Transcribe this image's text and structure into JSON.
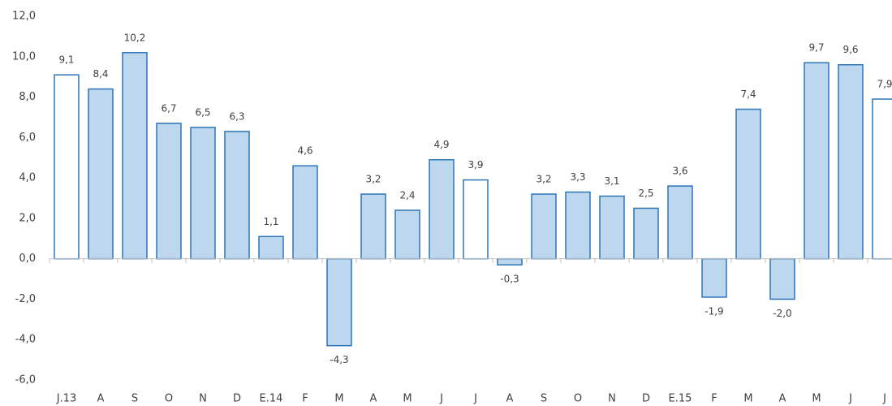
{
  "chart_data": {
    "type": "bar",
    "categories": [
      "J.13",
      "A",
      "S",
      "O",
      "N",
      "D",
      "E.14",
      "F",
      "M",
      "A",
      "M",
      "J",
      "J",
      "A",
      "S",
      "O",
      "N",
      "D",
      "E.15",
      "F",
      "M",
      "A",
      "M",
      "J",
      "J"
    ],
    "values": [
      9.1,
      8.4,
      10.2,
      6.7,
      6.5,
      6.3,
      1.1,
      4.6,
      -4.3,
      3.2,
      2.4,
      4.9,
      3.9,
      -0.3,
      3.2,
      3.3,
      3.1,
      2.5,
      3.6,
      -1.9,
      7.4,
      -2.0,
      9.7,
      9.6,
      7.9
    ],
    "value_labels": [
      "9,1",
      "8,4",
      "10,2",
      "6,7",
      "6,5",
      "6,3",
      "1,1",
      "4,6",
      "-4,3",
      "3,2",
      "2,4",
      "4,9",
      "3,9",
      "-0,3",
      "3,2",
      "3,3",
      "3,1",
      "2,5",
      "3,6",
      "-1,9",
      "7,4",
      "-2,0",
      "9,7",
      "9,6",
      "7,9"
    ],
    "colors": [
      "#ffffff",
      "#bdd7ee",
      "#bdd7ee",
      "#bdd7ee",
      "#bdd7ee",
      "#bdd7ee",
      "#bdd7ee",
      "#bdd7ee",
      "#bdd7ee",
      "#bdd7ee",
      "#bdd7ee",
      "#bdd7ee",
      "#ffffff",
      "#bdd7ee",
      "#bdd7ee",
      "#bdd7ee",
      "#bdd7ee",
      "#bdd7ee",
      "#bdd7ee",
      "#bdd7ee",
      "#bdd7ee",
      "#bdd7ee",
      "#bdd7ee",
      "#bdd7ee",
      "#ffffff"
    ],
    "border_color": "#2e75b6",
    "ylim": [
      -6,
      12
    ],
    "yticks": [
      {
        "value": -6,
        "label": "-6,0"
      },
      {
        "value": -4,
        "label": "-4,0"
      },
      {
        "value": -2,
        "label": "-2,0"
      },
      {
        "value": 0,
        "label": "0,0"
      },
      {
        "value": 2,
        "label": "2,0"
      },
      {
        "value": 4,
        "label": "4,0"
      },
      {
        "value": 6,
        "label": "6,0"
      },
      {
        "value": 8,
        "label": "8,0"
      },
      {
        "value": 10,
        "label": "10,0"
      },
      {
        "value": 12,
        "label": "12,0"
      }
    ],
    "grid": false
  }
}
